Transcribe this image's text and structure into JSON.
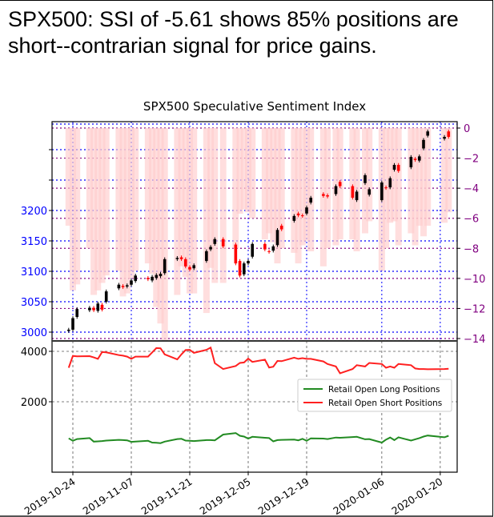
{
  "headline": "SPX500: SSI of -5.61 shows 85% positions are short--contrarian signal for price gains.",
  "chart_data": [
    {
      "type": "candlestick+bar",
      "title": "SPX500 Speculative Sentiment Index",
      "left_axis": {
        "label": "",
        "ticks": [
          3000,
          3050,
          3100,
          3150,
          3200
        ],
        "unlabeled_ticks": [
          3250,
          3300
        ],
        "color": "#0000ff"
      },
      "right_axis": {
        "label": "",
        "ticks": [
          0,
          -2,
          -4,
          -6,
          -8,
          -10,
          -12,
          -14
        ],
        "tick_labels": [
          "0",
          "−2",
          "−4",
          "−6",
          "−8",
          "−10",
          "−12",
          "−14"
        ],
        "color": "#800080"
      },
      "grid": true,
      "colors": {
        "up": "#000000",
        "down": "#ff0000",
        "ssi_bar": "#ffcccc",
        "price_grid": "#0000ff",
        "ssi_grid": "#800080"
      },
      "dates": [
        "2019-10-23",
        "2019-10-24",
        "2019-10-25",
        "2019-10-28",
        "2019-10-29",
        "2019-10-30",
        "2019-10-31",
        "2019-11-01",
        "2019-11-04",
        "2019-11-05",
        "2019-11-06",
        "2019-11-07",
        "2019-11-08",
        "2019-11-11",
        "2019-11-12",
        "2019-11-13",
        "2019-11-14",
        "2019-11-15",
        "2019-11-18",
        "2019-11-19",
        "2019-11-20",
        "2019-11-21",
        "2019-11-22",
        "2019-11-25",
        "2019-11-26",
        "2019-11-27",
        "2019-11-29",
        "2019-12-02",
        "2019-12-03",
        "2019-12-04",
        "2019-12-05",
        "2019-12-06",
        "2019-12-09",
        "2019-12-10",
        "2019-12-11",
        "2019-12-12",
        "2019-12-13",
        "2019-12-16",
        "2019-12-17",
        "2019-12-18",
        "2019-12-19",
        "2019-12-20",
        "2019-12-23",
        "2019-12-24",
        "2019-12-26",
        "2019-12-27",
        "2019-12-30",
        "2019-12-31",
        "2020-01-02",
        "2020-01-03",
        "2020-01-06",
        "2020-01-07",
        "2020-01-08",
        "2020-01-09",
        "2020-01-10",
        "2020-01-13",
        "2020-01-14",
        "2020-01-15",
        "2020-01-16",
        "2020-01-17",
        "2020-01-21",
        "2020-01-22"
      ],
      "open": [
        3002,
        3004,
        3025,
        3036,
        3040,
        3035,
        3045,
        3050,
        3072,
        3076,
        3075,
        3078,
        3084,
        3089,
        3085,
        3089,
        3092,
        3097,
        3120,
        3123,
        3120,
        3107,
        3105,
        3117,
        3136,
        3145,
        3153,
        3144,
        3117,
        3095,
        3113,
        3124,
        3145,
        3133,
        3134,
        3143,
        3175,
        3183,
        3195,
        3192,
        3195,
        3213,
        3227,
        3225,
        3227,
        3247,
        3240,
        3217,
        3245,
        3226,
        3217,
        3238,
        3238,
        3267,
        3275,
        3271,
        3285,
        3282,
        3302,
        3323,
        3318,
        3330
      ],
      "close": [
        3004,
        3023,
        3038,
        3040,
        3036,
        3047,
        3037,
        3067,
        3078,
        3074,
        3077,
        3085,
        3093,
        3087,
        3091,
        3094,
        3096,
        3120,
        3122,
        3120,
        3108,
        3103,
        3110,
        3133,
        3140,
        3153,
        3141,
        3113,
        3093,
        3113,
        3117,
        3145,
        3136,
        3132,
        3141,
        3168,
        3169,
        3191,
        3192,
        3191,
        3205,
        3221,
        3224,
        3223,
        3240,
        3240,
        3221,
        3231,
        3258,
        3235,
        3246,
        3237,
        3253,
        3275,
        3265,
        3288,
        3283,
        3289,
        3316,
        3330,
        3321,
        3321
      ],
      "ssi": [
        -6.5,
        -10.8,
        -10.4,
        -8.0,
        -11.1,
        -10.8,
        -10.3,
        -9.8,
        -9.5,
        -11.2,
        -11.0,
        -10.0,
        -9.5,
        -9.0,
        -9.7,
        -11.9,
        -13.0,
        -14.2,
        -11.1,
        -9.2,
        -9.9,
        -11.0,
        -11.0,
        -12.3,
        -9.3,
        -10.3,
        -10.3,
        -8.0,
        -5.7,
        -5.4,
        -5.6,
        -6.0,
        -7.4,
        -7.0,
        -7.6,
        -9.0,
        -8.0,
        -8.3,
        -9.0,
        -7.8,
        -7.5,
        -8.2,
        -9.2,
        -8.0,
        -7.8,
        -7.4,
        -7.4,
        -8.2,
        -7.0,
        -6.2,
        -9.5,
        -8.0,
        -6.3,
        -6.2,
        -7.8,
        -7.0,
        -7.8,
        -6.5,
        -7.2,
        -6.5,
        -6.3,
        -5.6
      ],
      "series": [
        {
          "name": "Retail Open Long Positions",
          "color": "#228b22",
          "values": [
            550,
            450,
            520,
            560,
            420,
            430,
            440,
            460,
            490,
            480,
            470,
            410,
            420,
            450,
            380,
            370,
            360,
            420,
            520,
            530,
            460,
            450,
            440,
            480,
            480,
            470,
            700,
            760,
            650,
            620,
            540,
            610,
            570,
            560,
            430,
            480,
            490,
            500,
            470,
            530,
            450,
            550,
            540,
            520,
            580,
            570,
            600,
            610,
            510,
            520,
            380,
            500,
            580,
            480,
            590,
            460,
            510,
            560,
            620,
            660,
            590,
            650
          ]
        },
        {
          "name": "Retail Open Short Positions",
          "color": "#ff2020",
          "values": [
            3350,
            3820,
            3800,
            3810,
            3760,
            3700,
            3970,
            3960,
            3850,
            3830,
            3790,
            3700,
            3790,
            3790,
            3960,
            4130,
            4120,
            3880,
            3680,
            3880,
            4050,
            4060,
            3940,
            4060,
            4150,
            3530,
            3300,
            3420,
            3540,
            3560,
            3710,
            3580,
            3670,
            3360,
            3390,
            3620,
            3610,
            3750,
            3700,
            3730,
            3700,
            3700,
            3600,
            3500,
            3400,
            3130,
            3300,
            3450,
            3400,
            3540,
            3500,
            3350,
            3400,
            3350,
            3500,
            3450,
            3320,
            3300,
            3300,
            3290,
            3300,
            3310
          ]
        }
      ],
      "bottom_axis": {
        "ticks": [
          2000,
          4000
        ]
      },
      "x_ticks": [
        "2019-10-24",
        "2019-11-07",
        "2019-11-21",
        "2019-12-05",
        "2019-12-19",
        "2020-01-06",
        "2020-01-20"
      ],
      "legend": "center-right"
    }
  ]
}
